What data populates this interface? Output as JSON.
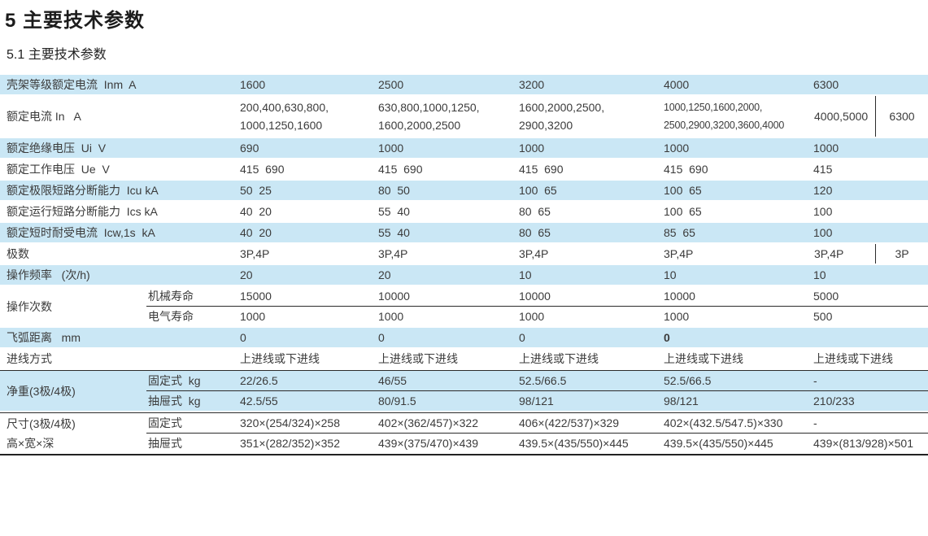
{
  "doc": {
    "title": "5 主要技术参数",
    "subtitle": "5.1 主要技术参数"
  },
  "colors": {
    "row_blue": "#cae7f5",
    "line_dark": "#2b2b2b",
    "text": "#3b3b3b"
  },
  "table": {
    "frame_ratings": [
      "1600",
      "2500",
      "3200",
      "4000",
      "6300"
    ],
    "rows": [
      {
        "type": "simple",
        "bg": "blue",
        "label": "壳架等级额定电流  Inm  A",
        "cells": [
          "1600",
          "2500",
          "3200",
          "4000",
          "6300"
        ]
      },
      {
        "type": "simple",
        "bg": "white",
        "tall": true,
        "label": "额定电流 In   A",
        "cells": [
          {
            "lines": [
              "200,400,630,800,",
              "1000,1250,1600"
            ]
          },
          {
            "lines": [
              "630,800,1000,1250,",
              "1600,2000,2500"
            ]
          },
          {
            "lines": [
              "1600,2000,2500,",
              "2900,3200"
            ]
          },
          {
            "lines": [
              "1000,1250,1600,2000,",
              "2500,2900,3200,3600,4000"
            ],
            "small": true
          },
          {
            "split": [
              "4000,5000",
              "6300"
            ]
          }
        ]
      },
      {
        "type": "simple",
        "bg": "blue",
        "label": "额定绝缘电压  Ui  V",
        "cells": [
          "690",
          "1000",
          "1000",
          "1000",
          "1000"
        ]
      },
      {
        "type": "simple",
        "bg": "white",
        "label": "额定工作电压  Ue  V",
        "cells": [
          "415  690",
          "415  690",
          "415  690",
          "415  690",
          "415"
        ]
      },
      {
        "type": "simple",
        "bg": "blue",
        "label": "额定极限短路分断能力  Icu kA",
        "cells": [
          "50  25",
          "80  50",
          "100  65",
          "100  65",
          "120"
        ]
      },
      {
        "type": "simple",
        "bg": "white",
        "label": "额定运行短路分断能力  Ics kA",
        "cells": [
          "40  20",
          "55  40",
          "80  65",
          "100  65",
          "100"
        ]
      },
      {
        "type": "simple",
        "bg": "blue",
        "label": "额定短时耐受电流  Icw,1s  kA",
        "cells": [
          "40  20",
          "55  40",
          "80  65",
          "85  65",
          "100"
        ]
      },
      {
        "type": "simple",
        "bg": "white",
        "label": "极数",
        "cells": [
          "3P,4P",
          "3P,4P",
          "3P,4P",
          "3P,4P",
          {
            "split": [
              "3P,4P",
              "3P"
            ]
          }
        ]
      },
      {
        "type": "simple",
        "bg": "blue",
        "label": "操作频率   (次/h)",
        "cells": [
          "20",
          "20",
          "10",
          "10",
          "10"
        ]
      },
      {
        "type": "group",
        "bg": "white",
        "label": "操作次数",
        "sub": [
          {
            "sublabel": "机械寿命",
            "cells": [
              "15000",
              "10000",
              "10000",
              "10000",
              "5000"
            ]
          },
          {
            "sublabel": "电气寿命",
            "cells": [
              "1000",
              "1000",
              "1000",
              "1000",
              "500"
            ]
          }
        ]
      },
      {
        "type": "simple",
        "bg": "blue",
        "label": "飞弧距离   mm",
        "cells": [
          "0",
          "0",
          "0",
          {
            "t": "0",
            "bold": true
          },
          ""
        ]
      },
      {
        "type": "simple",
        "bg": "white",
        "label": "进线方式",
        "cells": [
          "上进线或下进线",
          "上进线或下进线",
          "上进线或下进线",
          "上进线或下进线",
          "上进线或下进线"
        ]
      },
      {
        "type": "group",
        "bg": "blue",
        "label": "净重(3极/4极)",
        "topline": true,
        "sub": [
          {
            "sublabel": "固定式  kg",
            "cells": [
              "22/26.5",
              "46/55",
              "52.5/66.5",
              "52.5/66.5",
              "-"
            ]
          },
          {
            "sublabel": "抽屉式  kg",
            "cells": [
              "42.5/55",
              "80/91.5",
              "98/121",
              "98/121",
              "210/233"
            ]
          }
        ]
      },
      {
        "type": "group",
        "bg": "white",
        "label": "尺寸(3极/4极)\n高×宽×深",
        "topline": true,
        "bottomline": true,
        "sub": [
          {
            "sublabel": "固定式",
            "cells": [
              "320×(254/324)×258",
              "402×(362/457)×322",
              "406×(422/537)×329",
              "402×(432.5/547.5)×330",
              "-"
            ]
          },
          {
            "sublabel": "抽屉式",
            "cells": [
              "351×(282/352)×352",
              "439×(375/470)×439",
              "439.5×(435/550)×445",
              "439.5×(435/550)×445",
              "439×(813/928)×501"
            ]
          }
        ]
      }
    ]
  }
}
